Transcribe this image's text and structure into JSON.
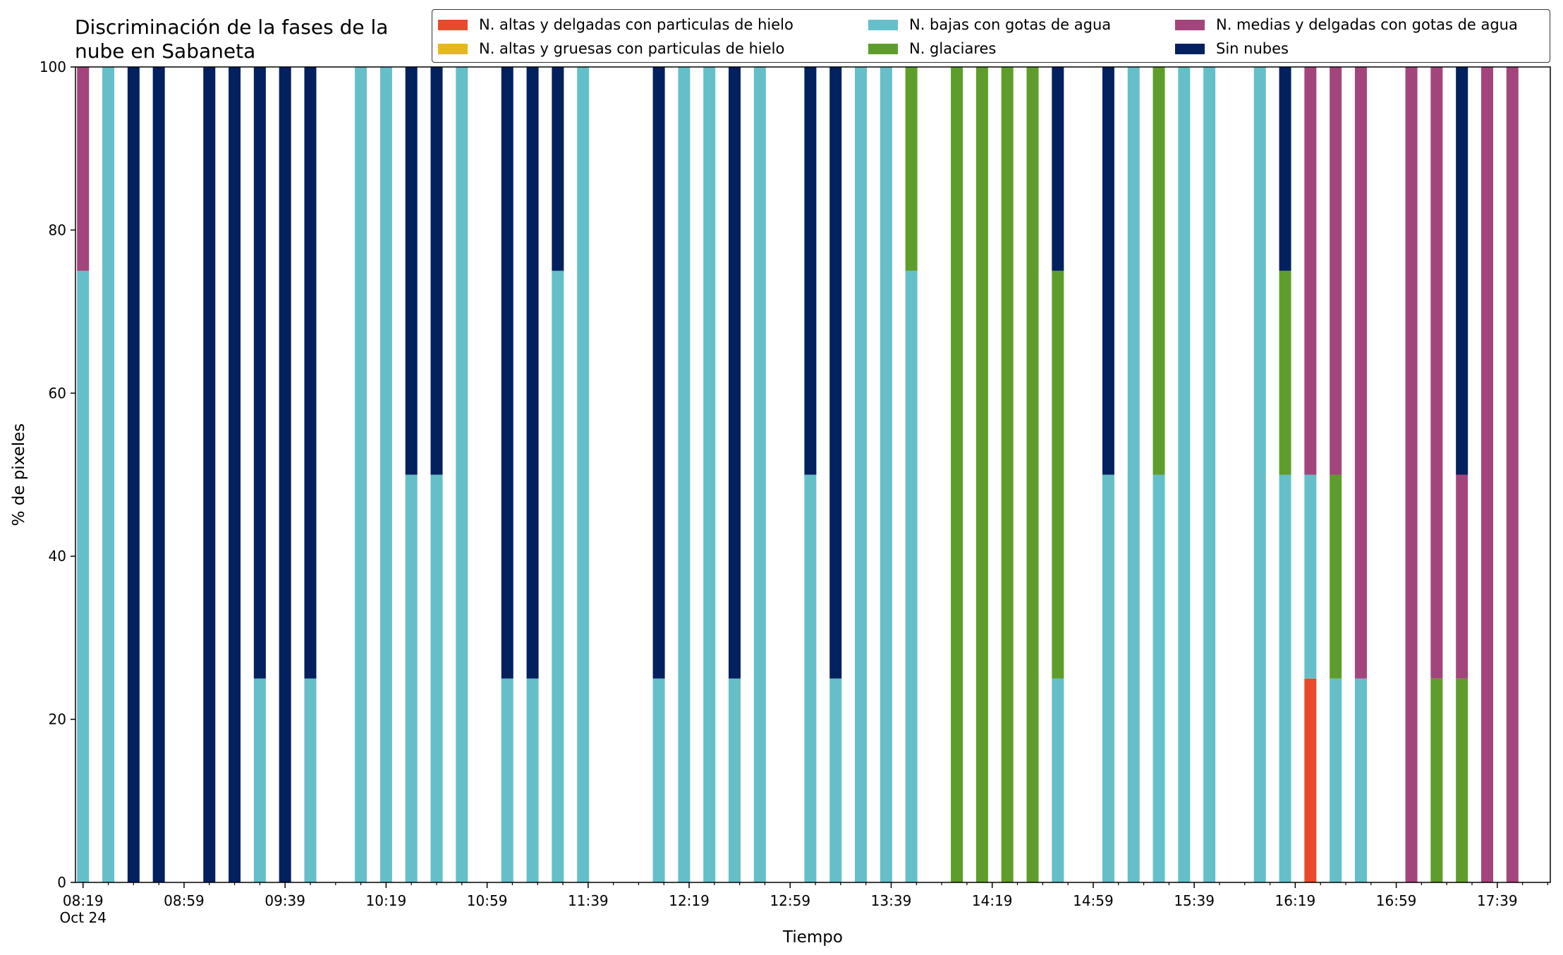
{
  "chart_data": {
    "type": "bar",
    "stacked": true,
    "title": "Discriminación de la fases de la\nnube en Sabaneta",
    "xlabel": "Tiempo",
    "ylabel": "% de pixeles",
    "ylim": [
      0,
      100
    ],
    "yticks": [
      0,
      20,
      40,
      60,
      80,
      100
    ],
    "grid": false,
    "legend_position": "top-right",
    "x_tick_labels": [
      "08:19",
      "08:59",
      "09:39",
      "10:19",
      "10:59",
      "11:39",
      "12:19",
      "12:59",
      "13:39",
      "14:19",
      "14:59",
      "15:39",
      "16:19",
      "16:59",
      "17:39"
    ],
    "x_date_label": "Oct 24",
    "x_range": [
      "08:16",
      "18:00"
    ],
    "series": [
      {
        "name": "N. altas y delgadas con particulas de hielo",
        "color": "#e84a2b"
      },
      {
        "name": "N. altas y gruesas con particulas de hielo",
        "color": "#e5b81e"
      },
      {
        "name": "N. bajas con gotas de agua",
        "color": "#65bfc9"
      },
      {
        "name": "N. glaciares",
        "color": "#5e9d2b"
      },
      {
        "name": "N. medias y delgadas con gotas de agua",
        "color": "#a3457c"
      },
      {
        "name": "Sin nubes",
        "color": "#03205f"
      }
    ],
    "legend_order": [
      0,
      1,
      2,
      3,
      4,
      5
    ],
    "stack_order": [
      0,
      1,
      2,
      3,
      4,
      5
    ],
    "bars": [
      {
        "time": "08:19",
        "values": [
          0,
          0,
          75,
          0,
          25,
          0
        ]
      },
      {
        "time": "08:29",
        "values": [
          0,
          0,
          100,
          0,
          0,
          0
        ]
      },
      {
        "time": "08:39",
        "values": [
          0,
          0,
          0,
          0,
          0,
          100
        ]
      },
      {
        "time": "08:49",
        "values": [
          0,
          0,
          0,
          0,
          0,
          100
        ]
      },
      {
        "time": "09:09",
        "values": [
          0,
          0,
          0,
          0,
          0,
          100
        ]
      },
      {
        "time": "09:19",
        "values": [
          0,
          0,
          0,
          0,
          0,
          100
        ]
      },
      {
        "time": "09:29",
        "values": [
          0,
          0,
          25,
          0,
          0,
          75
        ]
      },
      {
        "time": "09:39",
        "values": [
          0,
          0,
          0,
          0,
          0,
          100
        ]
      },
      {
        "time": "09:49",
        "values": [
          0,
          0,
          25,
          0,
          0,
          75
        ]
      },
      {
        "time": "10:09",
        "values": [
          0,
          0,
          100,
          0,
          0,
          0
        ]
      },
      {
        "time": "10:19",
        "values": [
          0,
          0,
          100,
          0,
          0,
          0
        ]
      },
      {
        "time": "10:29",
        "values": [
          0,
          0,
          50,
          0,
          0,
          50
        ]
      },
      {
        "time": "10:39",
        "values": [
          0,
          0,
          50,
          0,
          0,
          50
        ]
      },
      {
        "time": "10:49",
        "values": [
          0,
          0,
          100,
          0,
          0,
          0
        ]
      },
      {
        "time": "11:07",
        "values": [
          0,
          0,
          25,
          0,
          0,
          75
        ]
      },
      {
        "time": "11:17",
        "values": [
          0,
          0,
          25,
          0,
          0,
          75
        ]
      },
      {
        "time": "11:27",
        "values": [
          0,
          0,
          75,
          0,
          0,
          25
        ]
      },
      {
        "time": "11:37",
        "values": [
          0,
          0,
          100,
          0,
          0,
          0
        ]
      },
      {
        "time": "12:07",
        "values": [
          0,
          0,
          25,
          0,
          0,
          75
        ]
      },
      {
        "time": "12:17",
        "values": [
          0,
          0,
          100,
          0,
          0,
          0
        ]
      },
      {
        "time": "12:27",
        "values": [
          0,
          0,
          100,
          0,
          0,
          0
        ]
      },
      {
        "time": "12:37",
        "values": [
          0,
          0,
          25,
          0,
          0,
          75
        ]
      },
      {
        "time": "12:47",
        "values": [
          0,
          0,
          100,
          0,
          0,
          0
        ]
      },
      {
        "time": "13:07",
        "values": [
          0,
          0,
          50,
          0,
          0,
          50
        ]
      },
      {
        "time": "13:17",
        "values": [
          0,
          0,
          25,
          0,
          0,
          75
        ]
      },
      {
        "time": "13:27",
        "values": [
          0,
          0,
          100,
          0,
          0,
          0
        ]
      },
      {
        "time": "13:37",
        "values": [
          0,
          0,
          100,
          0,
          0,
          0
        ]
      },
      {
        "time": "13:47",
        "values": [
          0,
          0,
          75,
          25,
          0,
          0
        ]
      },
      {
        "time": "14:05",
        "values": [
          0,
          0,
          0,
          100,
          0,
          0
        ]
      },
      {
        "time": "14:15",
        "values": [
          0,
          0,
          0,
          100,
          0,
          0
        ]
      },
      {
        "time": "14:25",
        "values": [
          0,
          0,
          0,
          100,
          0,
          0
        ]
      },
      {
        "time": "14:35",
        "values": [
          0,
          0,
          0,
          100,
          0,
          0
        ]
      },
      {
        "time": "14:45",
        "values": [
          0,
          0,
          25,
          50,
          0,
          25
        ]
      },
      {
        "time": "15:05",
        "values": [
          0,
          0,
          50,
          0,
          0,
          50
        ]
      },
      {
        "time": "15:15",
        "values": [
          0,
          0,
          100,
          0,
          0,
          0
        ]
      },
      {
        "time": "15:25",
        "values": [
          0,
          0,
          50,
          50,
          0,
          0
        ]
      },
      {
        "time": "15:35",
        "values": [
          0,
          0,
          100,
          0,
          0,
          0
        ]
      },
      {
        "time": "15:45",
        "values": [
          0,
          0,
          100,
          0,
          0,
          0
        ]
      },
      {
        "time": "16:05",
        "values": [
          0,
          0,
          100,
          0,
          0,
          0
        ]
      },
      {
        "time": "16:15",
        "values": [
          0,
          0,
          50,
          25,
          0,
          25
        ]
      },
      {
        "time": "16:25",
        "values": [
          25,
          0,
          25,
          0,
          50,
          0
        ]
      },
      {
        "time": "16:35",
        "values": [
          0,
          0,
          25,
          25,
          50,
          0
        ]
      },
      {
        "time": "16:45",
        "values": [
          0,
          0,
          25,
          0,
          75,
          0
        ]
      },
      {
        "time": "17:05",
        "values": [
          0,
          0,
          0,
          0,
          100,
          0
        ]
      },
      {
        "time": "17:15",
        "values": [
          0,
          0,
          0,
          25,
          75,
          0
        ]
      },
      {
        "time": "17:25",
        "values": [
          0,
          0,
          0,
          25,
          25,
          50
        ]
      },
      {
        "time": "17:35",
        "values": [
          0,
          0,
          0,
          0,
          100,
          0
        ]
      },
      {
        "time": "17:45",
        "values": [
          0,
          0,
          0,
          0,
          100,
          0
        ]
      }
    ]
  }
}
